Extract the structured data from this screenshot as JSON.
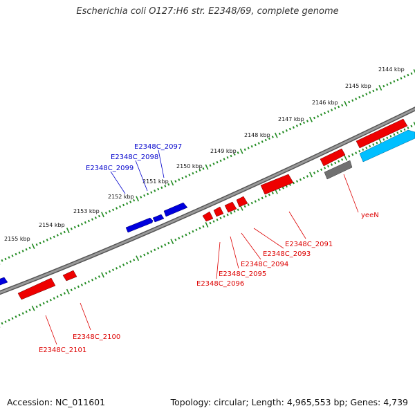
{
  "title": "Escherichia coli O127:H6 str. E2348/69, complete genome",
  "footer": {
    "accession": "Accession: NC_011601",
    "stats": "Topology: circular; Length: 4,965,553 bp; Genes: 4,739"
  },
  "scale_labels": [
    "2144 kbp",
    "2145 kbp",
    "2146 kbp",
    "2147 kbp",
    "2148 kbp",
    "2149 kbp",
    "2150 kbp",
    "2151 kbp",
    "2152 kbp",
    "2153 kbp",
    "2154 kbp",
    "2155 kbp"
  ],
  "gene_labels": {
    "plus_strand": [
      "E2348C_2097",
      "E2348C_2098",
      "E2348C_2099"
    ],
    "minus_strand": [
      "yeeN",
      "E2348C_2091",
      "E2348C_2093",
      "E2348C_2094",
      "E2348C_2095",
      "E2348C_2096",
      "E2348C_2100",
      "E2348C_2101"
    ]
  },
  "colors": {
    "backbone": "#808080",
    "plus_gene": "#0000dd",
    "minus_gene": "#ee0000",
    "rna_gene": "#00bfff",
    "other_gene": "#707070",
    "tick": "#228b22",
    "plus_label": "#0000cc",
    "minus_label": "#dd0000"
  }
}
